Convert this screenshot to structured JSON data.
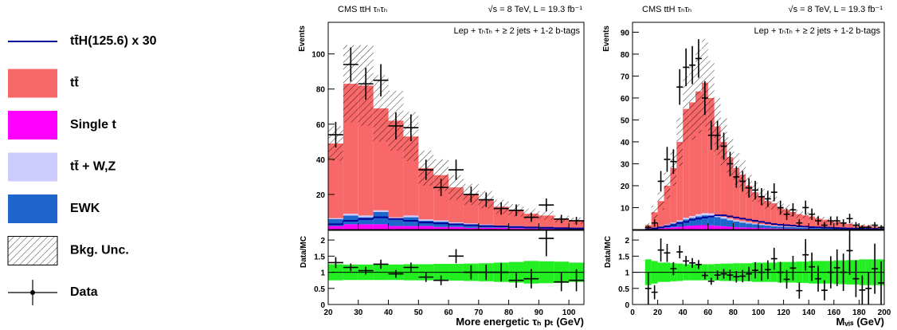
{
  "chart_data": [
    {
      "type": "stacked_histogram",
      "title": "CMS ttH τₕτₕ",
      "subtitle": "√s = 8 TeV, L = 19.3 fb⁻¹",
      "annotation": "Lep + τₕτₕ + ≥ 2 jets + 1-2 b-tags",
      "xlabel": "More energetic τₕ pₜ (GeV)",
      "ylabel": "Events",
      "bins": [
        20,
        25,
        30,
        35,
        40,
        45,
        50,
        55,
        60,
        65,
        70,
        75,
        80,
        85,
        90,
        95,
        100,
        105
      ],
      "xlim": [
        20,
        105
      ],
      "xticks": [
        20,
        30,
        40,
        50,
        60,
        70,
        80,
        90,
        100
      ],
      "ylim": [
        0,
        118
      ],
      "yticks": [
        20,
        40,
        60,
        80,
        100
      ],
      "series": [
        {
          "name": "Single t",
          "color": "#ff00ff",
          "values": [
            2,
            3,
            3,
            3,
            2,
            2,
            2,
            1.5,
            1.5,
            1,
            1,
            1,
            0.8,
            0.6,
            0.5,
            0.4,
            0.3
          ]
        },
        {
          "name": "EWK",
          "color": "#1f66cc",
          "values": [
            4,
            5,
            4,
            7,
            4,
            5,
            3,
            3,
            2,
            2,
            1.5,
            1,
            1,
            0.8,
            0.6,
            0.5,
            0.4
          ]
        },
        {
          "name": "tt̄ + W,Z",
          "color": "#ccccff",
          "values": [
            0.5,
            1,
            1,
            1,
            1,
            1,
            0.8,
            0.7,
            0.6,
            0.5,
            0.4,
            0.3,
            0.3,
            0.2,
            0.2,
            0.2,
            0.1
          ]
        },
        {
          "name": "tt̄",
          "color": "#f96868",
          "values": [
            42.5,
            74,
            74,
            58,
            55,
            45,
            29.2,
            25.8,
            19.9,
            16.5,
            14.1,
            10.7,
            8.9,
            7.4,
            6.7,
            4.9,
            4.2
          ]
        }
      ],
      "signal": {
        "name": "tt̄H(125.6) x 30",
        "color": "#000099",
        "values": [
          3,
          5,
          6,
          7,
          6,
          5,
          4,
          3.5,
          3,
          2.5,
          2,
          1.8,
          1.5,
          1.2,
          1,
          0.8,
          0.6
        ]
      },
      "uncertainty": {
        "name": "Bkg. Unc.",
        "values": [
          10,
          22,
          23,
          19,
          17,
          14,
          10,
          9,
          7,
          6,
          5,
          4,
          3.5,
          3,
          2.5,
          2,
          1.8
        ]
      },
      "data": {
        "name": "Data",
        "color": "#000000",
        "values": [
          54,
          94,
          83,
          85,
          59,
          58,
          34,
          24,
          34,
          20,
          17,
          12,
          11,
          7,
          14,
          6,
          5
        ],
        "errors": [
          7.3,
          9.7,
          9.1,
          9.2,
          7.7,
          7.6,
          5.8,
          4.9,
          5.8,
          4.5,
          4.1,
          3.5,
          3.3,
          2.6,
          3.7,
          2.4,
          2.2
        ]
      },
      "ratio": {
        "ylabel": "Data/MC",
        "ylim": [
          0,
          2.3
        ],
        "yticks": [
          0,
          0.5,
          1,
          1.5,
          2
        ],
        "band_color": "#22ee22",
        "values": [
          1.3,
          1.15,
          1.05,
          1.25,
          0.95,
          1.15,
          0.85,
          0.75,
          1.5,
          1.0,
          1.0,
          1.0,
          0.75,
          0.8,
          2.05,
          0.7,
          0.75
        ],
        "errors": [
          0.17,
          0.12,
          0.12,
          0.14,
          0.12,
          0.15,
          0.15,
          0.15,
          0.22,
          0.22,
          0.24,
          0.29,
          0.23,
          0.3,
          0.55,
          0.29,
          0.34
        ],
        "band": [
          0.25,
          0.24,
          0.24,
          0.24,
          0.24,
          0.25,
          0.25,
          0.26,
          0.26,
          0.27,
          0.28,
          0.3,
          0.32,
          0.35,
          0.34,
          0.33,
          0.3
        ]
      }
    },
    {
      "type": "stacked_histogram",
      "title": "CMS ttH τₕτₕ",
      "subtitle": "√s = 8 TeV, L = 19.3 fb⁻¹",
      "annotation": "Lep + τₕτₕ + ≥ 2 jets + 1-2 b-tags",
      "xlabel": "Mᵥᵢₛ (GeV)",
      "ylabel": "Events",
      "bins": [
        10,
        15,
        20,
        25,
        30,
        35,
        40,
        45,
        50,
        55,
        60,
        65,
        70,
        75,
        80,
        85,
        90,
        95,
        100,
        105,
        110,
        115,
        120,
        125,
        130,
        135,
        140,
        145,
        150,
        155,
        160,
        165,
        170,
        175,
        180,
        185,
        190,
        195,
        200
      ],
      "xlim": [
        0,
        200
      ],
      "xticks": [
        0,
        20,
        40,
        60,
        80,
        100,
        120,
        140,
        160,
        180,
        200
      ],
      "ylim": [
        0,
        94.5
      ],
      "yticks": [
        10,
        20,
        30,
        40,
        50,
        60,
        70,
        80,
        90
      ],
      "series": [
        {
          "values": [
            0.1,
            0.3,
            0.5,
            0.8,
            1,
            1.3,
            1.6,
            1.8,
            2,
            2,
            1.9,
            1.7,
            1.5,
            1.3,
            1.1,
            1,
            0.9,
            0.8,
            0.7,
            0.6,
            0.5,
            0.5,
            0.4,
            0.4,
            0.3,
            0.3,
            0.3,
            0.2,
            0.2,
            0.2,
            0.2,
            0.1,
            0.1,
            0.1,
            0.1,
            0.1,
            0.1,
            0.1
          ]
        },
        {
          "values": [
            0.2,
            0.5,
            0.8,
            1.2,
            1.8,
            2.3,
            3,
            3.5,
            4,
            4.5,
            4.5,
            4,
            3.5,
            3,
            2.6,
            2.2,
            1.9,
            1.6,
            1.4,
            1.2,
            1,
            0.9,
            0.8,
            0.7,
            0.6,
            0.5,
            0.5,
            0.4,
            0.4,
            0.3,
            0.3,
            0.3,
            0.2,
            0.2,
            0.2,
            0.2,
            0.1,
            0.1
          ]
        },
        {
          "values": [
            0,
            0.1,
            0.2,
            0.3,
            0.4,
            0.6,
            0.8,
            0.9,
            1,
            1,
            1,
            0.9,
            0.8,
            0.7,
            0.6,
            0.6,
            0.5,
            0.4,
            0.4,
            0.3,
            0.3,
            0.3,
            0.2,
            0.2,
            0.2,
            0.2,
            0.1,
            0.1,
            0.1,
            0.1,
            0.1,
            0.1,
            0.1,
            0.1,
            0.1,
            0.1,
            0.1,
            0.1
          ]
        },
        {
          "values": [
            1.7,
            7,
            11.5,
            17.7,
            24.8,
            35.8,
            49.6,
            51.8,
            56,
            59.5,
            52.6,
            40.4,
            34.2,
            28,
            23.7,
            21.2,
            16.7,
            14.2,
            12.5,
            10.9,
            10.2,
            8.3,
            7.6,
            6.7,
            5.9,
            5.5,
            5.1,
            4.3,
            3.8,
            3.4,
            2.9,
            2.5,
            2.2,
            1.7,
            1.5,
            1.3,
            1.2,
            1
          ]
        }
      ],
      "signal": {
        "values": [
          0.2,
          0.5,
          1,
          1.5,
          2,
          3,
          3.5,
          4.5,
          5,
          5.5,
          6,
          6.5,
          6.5,
          6,
          5.5,
          5,
          4.5,
          4,
          3.5,
          3,
          2.5,
          2.2,
          2,
          1.8,
          1.5,
          1.3,
          1.1,
          1,
          0.9,
          0.8,
          0.7,
          0.6,
          0.5,
          0.4,
          0.4,
          0.3,
          0.3,
          0.2
        ]
      },
      "uncertainty": {
        "values": [
          1,
          3,
          4,
          6,
          8,
          11,
          15,
          17,
          19,
          20,
          17,
          13,
          11,
          9,
          7.5,
          6.5,
          5,
          4.5,
          4,
          3.5,
          3,
          2.7,
          2.4,
          2.2,
          2,
          1.8,
          1.6,
          1.4,
          1.3,
          1.1,
          1,
          0.9,
          0.8,
          0.7,
          0.6,
          0.6,
          0.5,
          0.5
        ]
      },
      "data": {
        "values": [
          1,
          3,
          22,
          32,
          31,
          65,
          74,
          75,
          78,
          60,
          43,
          43,
          38,
          30,
          24,
          22,
          19,
          18,
          15,
          14,
          17,
          10,
          7,
          9,
          3,
          10,
          7,
          4,
          2,
          4,
          4,
          3,
          5,
          2,
          1,
          1,
          2,
          1
        ],
        "errors": [
          1,
          1.7,
          4.7,
          5.7,
          5.6,
          8.1,
          8.6,
          8.7,
          8.8,
          7.7,
          6.6,
          6.6,
          6.2,
          5.5,
          4.9,
          4.7,
          4.4,
          4.2,
          3.9,
          3.7,
          4.1,
          3.2,
          2.6,
          3,
          1.7,
          3.2,
          2.6,
          2,
          1.4,
          2,
          2,
          1.7,
          2.2,
          1.4,
          1,
          1,
          1.4,
          1
        ]
      },
      "ratio": {
        "ylabel": "Data/MC",
        "ylim": [
          0,
          2.3
        ],
        "yticks": [
          0,
          0.5,
          1,
          1.5,
          2
        ],
        "values": [
          0.5,
          0.38,
          1.69,
          1.6,
          1.11,
          1.63,
          1.35,
          1.29,
          1.24,
          0.9,
          0.72,
          0.91,
          0.95,
          0.91,
          0.86,
          0.88,
          0.95,
          1.06,
          1.0,
          1.08,
          1.42,
          1.0,
          0.78,
          1.13,
          0.43,
          1.54,
          1.17,
          0.8,
          0.44,
          1.0,
          1.14,
          1.0,
          1.67,
          0.8,
          0.45,
          0.5,
          1.11,
          0.67
        ],
        "errors": [
          0.5,
          0.22,
          0.36,
          0.28,
          0.2,
          0.2,
          0.16,
          0.15,
          0.14,
          0.12,
          0.11,
          0.14,
          0.15,
          0.17,
          0.18,
          0.19,
          0.22,
          0.25,
          0.26,
          0.29,
          0.34,
          0.32,
          0.29,
          0.38,
          0.25,
          0.49,
          0.44,
          0.4,
          0.31,
          0.5,
          0.57,
          0.58,
          0.75,
          0.57,
          0.45,
          0.5,
          0.78,
          0.67
        ],
        "band": [
          0.4,
          0.35,
          0.3,
          0.3,
          0.28,
          0.27,
          0.25,
          0.25,
          0.25,
          0.25,
          0.25,
          0.26,
          0.27,
          0.27,
          0.28,
          0.28,
          0.28,
          0.3,
          0.3,
          0.3,
          0.3,
          0.32,
          0.32,
          0.32,
          0.33,
          0.33,
          0.35,
          0.35,
          0.35,
          0.35,
          0.37,
          0.37,
          0.38,
          0.38,
          0.4,
          0.4,
          0.4,
          0.4
        ]
      }
    }
  ]
}
